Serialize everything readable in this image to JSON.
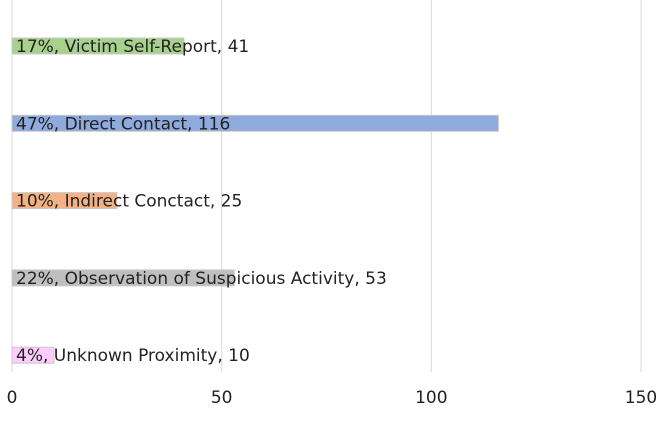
{
  "chart_data": {
    "type": "barh",
    "values": [
      41,
      116,
      25,
      53,
      10
    ],
    "value_labels": [
      "17%, Victim Self-Report, 41",
      "47%, Direct Contact, 116",
      "10%, Indirect Conctact, 25",
      "22%, Observation of Suspicious Activity, 53",
      "4%, Unknown Proximity, 10"
    ],
    "colors": [
      "#a9d18e",
      "#8faadc",
      "#f4b183",
      "#bfbfbf",
      "#ffccff"
    ],
    "xlim": [
      0,
      150
    ],
    "xticks": [
      0,
      50,
      100,
      150
    ],
    "grid": true
  }
}
